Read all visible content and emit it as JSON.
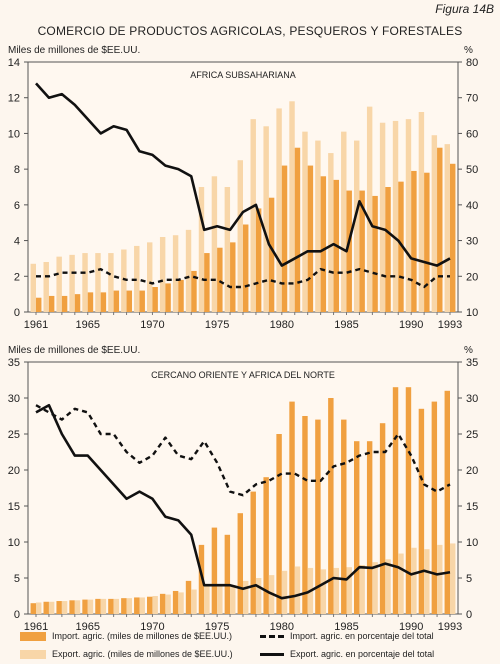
{
  "figure_label": "Figura 14B",
  "title": "COMERCIO DE PRODUCTOS AGRICOLAS, PESQUEROS Y FORESTALES",
  "legend": {
    "import_bars": "Import. agric. (miles de millones de $EE.UU.)",
    "export_bars": "Export. agric. (miles de millones de $EE.UU.)",
    "import_pct": "Import. agric. en porcentaje del total",
    "export_pct": "Export. agric. en porcentaje del total"
  },
  "colors": {
    "import_bar": "#f0a040",
    "export_bar": "#f8d6a8",
    "lines": "#111111",
    "background": "#fdf6ee"
  },
  "chart_data": [
    {
      "type": "bar",
      "subtitle": "AFRICA SUBSAHARIANA",
      "ylabel_left": "Miles de millones de $EE.UU.",
      "ylabel_right": "%",
      "ylim_left": [
        0,
        14
      ],
      "ylim_right": [
        10,
        80
      ],
      "yticks_left": [
        "0",
        "2",
        "4",
        "6",
        "8",
        "10",
        "12",
        "14"
      ],
      "yticks_right": [
        "10",
        "20",
        "30",
        "40",
        "50",
        "60",
        "70",
        "80"
      ],
      "xticks": [
        "1961",
        "1965",
        "1970",
        "1975",
        "1980",
        "1985",
        "1990",
        "1993"
      ],
      "x": [
        1961,
        1962,
        1963,
        1964,
        1965,
        1966,
        1967,
        1968,
        1969,
        1970,
        1971,
        1972,
        1973,
        1974,
        1975,
        1976,
        1977,
        1978,
        1979,
        1980,
        1981,
        1982,
        1983,
        1984,
        1985,
        1986,
        1987,
        1988,
        1989,
        1990,
        1991,
        1992,
        1993
      ],
      "series": [
        {
          "name": "Export. agric. (miles de millones de $EE.UU.)",
          "kind": "bar",
          "axis": "left",
          "values": [
            2.7,
            2.8,
            3.1,
            3.2,
            3.3,
            3.3,
            3.3,
            3.5,
            3.7,
            3.9,
            4.2,
            4.3,
            4.6,
            7.0,
            7.6,
            7.0,
            8.5,
            10.8,
            10.4,
            11.4,
            11.8,
            10.1,
            9.6,
            8.9,
            10.1,
            9.6,
            11.5,
            10.6,
            10.7,
            10.8,
            11.2,
            9.9,
            9.4
          ]
        },
        {
          "name": "Import. agric. (miles de millones de $EE.UU.)",
          "kind": "bar",
          "axis": "left",
          "values": [
            0.8,
            0.9,
            0.9,
            1.0,
            1.1,
            1.1,
            1.2,
            1.2,
            1.2,
            1.4,
            1.6,
            1.8,
            2.3,
            3.3,
            3.6,
            3.9,
            4.9,
            5.8,
            6.4,
            8.2,
            9.2,
            8.2,
            7.6,
            7.4,
            6.8,
            6.8,
            6.5,
            7.0,
            7.3,
            7.9,
            7.8,
            9.2,
            8.3
          ]
        },
        {
          "name": "Export. agric. en porcentaje del total",
          "kind": "line",
          "axis": "right",
          "values": [
            74,
            70,
            71,
            68,
            64,
            60,
            62,
            61,
            55,
            54,
            51,
            50,
            48,
            33,
            34,
            33,
            38,
            40,
            29,
            23,
            25,
            27,
            27,
            29,
            27,
            41,
            34,
            33,
            30,
            25,
            24,
            23,
            25
          ]
        },
        {
          "name": "Import. agric. en porcentaje del total",
          "kind": "line",
          "axis": "right",
          "values": [
            20,
            20,
            21,
            21,
            21,
            22,
            20,
            19,
            19,
            18,
            19,
            19,
            20,
            19,
            19,
            17,
            17,
            18,
            19,
            18,
            18,
            19,
            22,
            21,
            21,
            22,
            21,
            20,
            20,
            19,
            17,
            20,
            20
          ]
        }
      ]
    },
    {
      "type": "bar",
      "subtitle": "CERCANO ORIENTE Y AFRICA DEL NORTE",
      "ylabel_left": "Miles de millones de $EE.UU.",
      "ylabel_right": "%",
      "ylim_left": [
        0,
        35
      ],
      "ylim_right": [
        0,
        35
      ],
      "yticks_left": [
        "0",
        "5",
        "10",
        "15",
        "20",
        "25",
        "30",
        "35"
      ],
      "yticks_right": [
        "0",
        "5",
        "10",
        "15",
        "20",
        "25",
        "30",
        "35"
      ],
      "xticks": [
        "1961",
        "1965",
        "1970",
        "1975",
        "1980",
        "1985",
        "1990",
        "1993"
      ],
      "x": [
        1961,
        1962,
        1963,
        1964,
        1965,
        1966,
        1967,
        1968,
        1969,
        1970,
        1971,
        1972,
        1973,
        1974,
        1975,
        1976,
        1977,
        1978,
        1979,
        1980,
        1981,
        1982,
        1983,
        1984,
        1985,
        1986,
        1987,
        1988,
        1989,
        1990,
        1991,
        1992,
        1993
      ],
      "series": [
        {
          "name": "Import. agric. (miles de millones de $EE.UU.)",
          "kind": "bar",
          "axis": "left",
          "values": [
            1.5,
            1.7,
            1.8,
            1.9,
            2.0,
            2.1,
            2.1,
            2.2,
            2.3,
            2.4,
            2.8,
            3.2,
            4.6,
            9.6,
            12.0,
            11.0,
            14.0,
            17.0,
            19.0,
            25.0,
            29.5,
            27.5,
            27.0,
            30.0,
            27.0,
            24.0,
            24.0,
            26.5,
            31.5,
            31.5,
            28.5,
            29.5,
            31.0
          ]
        },
        {
          "name": "Export. agric. (miles de millones de $EE.UU.)",
          "kind": "bar",
          "axis": "left",
          "values": [
            1.6,
            1.7,
            1.8,
            1.9,
            2.0,
            2.1,
            2.1,
            2.2,
            2.3,
            2.5,
            2.7,
            3.0,
            3.4,
            3.9,
            4.0,
            4.0,
            4.6,
            5.0,
            5.4,
            6.0,
            6.6,
            6.4,
            6.2,
            6.4,
            6.5,
            6.8,
            7.2,
            7.6,
            8.4,
            9.2,
            9.0,
            9.6,
            9.8
          ]
        },
        {
          "name": "Import. agric. en porcentaje del total",
          "kind": "line",
          "axis": "right",
          "values": [
            29,
            28,
            27,
            28.5,
            28,
            25,
            25,
            22.5,
            21,
            22,
            24.5,
            22,
            21.5,
            24,
            21,
            17,
            16.5,
            18,
            18.5,
            19.5,
            19.5,
            18.5,
            18.5,
            20.5,
            21,
            22,
            22.5,
            22.5,
            25,
            22,
            18,
            17,
            18
          ]
        },
        {
          "name": "Export. agric. en porcentaje del total",
          "kind": "line",
          "axis": "right",
          "values": [
            28,
            29,
            25,
            22,
            22,
            20,
            18,
            16,
            17,
            16,
            13.5,
            13,
            11,
            4,
            4,
            4,
            3.5,
            4,
            3,
            2.2,
            2.5,
            3,
            4,
            5,
            4.8,
            6.5,
            6.4,
            7,
            6.5,
            5.5,
            6,
            5.5,
            5.8
          ]
        }
      ]
    }
  ]
}
